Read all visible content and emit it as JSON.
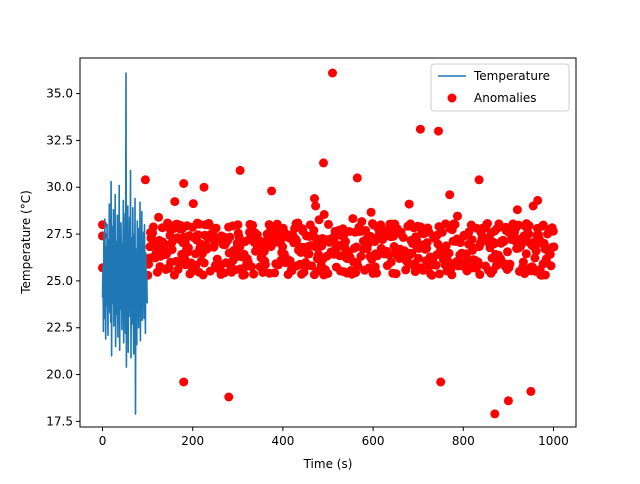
{
  "chart_data": {
    "type": "line+scatter",
    "title": "",
    "xlabel": "Time (s)",
    "ylabel": "Temperature (°C)",
    "xlim": [
      -50,
      1050
    ],
    "ylim": [
      17.2,
      36.9
    ],
    "xticks": [
      0,
      200,
      400,
      600,
      800,
      1000
    ],
    "yticks": [
      17.5,
      20.0,
      22.5,
      25.0,
      27.5,
      30.0,
      32.5,
      35.0
    ],
    "grid": false,
    "legend_position": "top-right",
    "series": [
      {
        "name": "Temperature",
        "type": "line",
        "color": "#1f77b4",
        "x_start": 0,
        "x_step": 1,
        "values": [
          24.1,
          25.8,
          22.3,
          27.6,
          23.0,
          28.3,
          25.4,
          21.9,
          26.8,
          23.7,
          28.0,
          24.6,
          22.1,
          27.2,
          25.0,
          29.1,
          23.3,
          26.1,
          22.8,
          30.3,
          21.0,
          25.9,
          27.9,
          23.8,
          28.8,
          22.6,
          26.4,
          24.0,
          29.6,
          21.5,
          25.3,
          27.1,
          23.2,
          28.5,
          22.0,
          26.9,
          24.5,
          30.1,
          21.3,
          27.4,
          23.5,
          28.1,
          25.6,
          22.4,
          27.0,
          24.8,
          29.3,
          21.7,
          26.2,
          23.9,
          28.6,
          22.2,
          36.1,
          20.4,
          27.7,
          25.1,
          29.0,
          21.2,
          26.6,
          24.3,
          28.4,
          23.1,
          30.9,
          20.9,
          27.3,
          25.7,
          22.7,
          28.9,
          24.2,
          21.1,
          27.5,
          23.6,
          29.4,
          17.9,
          26.7,
          24.9,
          21.6,
          28.2,
          23.4,
          27.8,
          22.5,
          26.0,
          24.7,
          29.2,
          21.8,
          27.0,
          23.3,
          28.7,
          22.9,
          26.3,
          24.4,
          27.6,
          23.0,
          28.0,
          25.2,
          22.2,
          26.5,
          24.1,
          25.5,
          23.8
        ]
      },
      {
        "name": "Anomalies",
        "type": "scatter",
        "color": "#ff0000",
        "highlight_points": [
          [
            510,
            36.1
          ],
          [
            705,
            33.1
          ],
          [
            745,
            33.0
          ],
          [
            490,
            31.3
          ],
          [
            305,
            30.9
          ],
          [
            565,
            30.5
          ],
          [
            835,
            30.4
          ],
          [
            95,
            30.4
          ],
          [
            180,
            30.2
          ],
          [
            225,
            30.0
          ],
          [
            375,
            29.8
          ],
          [
            470,
            29.4
          ],
          [
            680,
            29.1
          ],
          [
            770,
            29.6
          ],
          [
            965,
            29.3
          ],
          [
            920,
            28.8
          ],
          [
            955,
            29.0
          ],
          [
            180,
            19.6
          ],
          [
            750,
            19.6
          ],
          [
            280,
            18.8
          ],
          [
            900,
            18.6
          ],
          [
            950,
            19.1
          ],
          [
            870,
            17.9
          ],
          [
            0,
            25.7
          ],
          [
            0,
            28.0
          ],
          [
            0,
            27.4
          ]
        ]
      }
    ],
    "legend": [
      {
        "label": "Temperature",
        "marker": "line",
        "color": "#1f77b4"
      },
      {
        "label": "Anomalies",
        "marker": "circle",
        "color": "#ff0000"
      }
    ]
  }
}
